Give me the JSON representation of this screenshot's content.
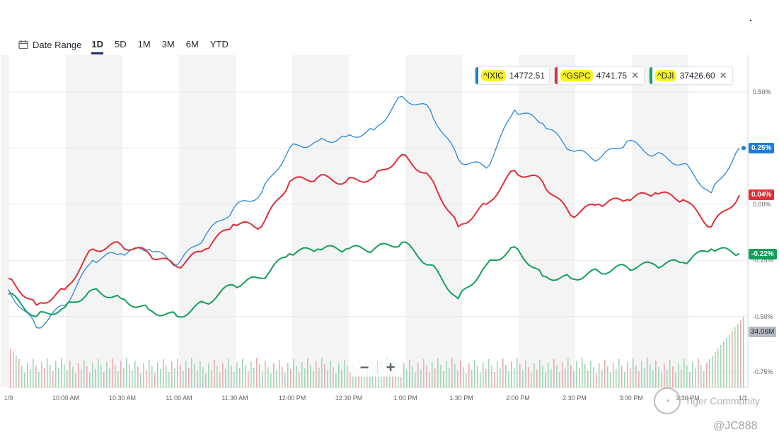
{
  "range_bar": {
    "date_range_label": "Date Range",
    "ranges": [
      "1D",
      "5D",
      "1M",
      "3M",
      "6M",
      "YTD"
    ],
    "active": "1D"
  },
  "legend": [
    {
      "symbol": "^IXIC",
      "value": "14772.51",
      "color": "#1a7fd4",
      "closable": false
    },
    {
      "symbol": "^GSPC",
      "value": "4741.75",
      "color": "#e02f36",
      "closable": true
    },
    {
      "symbol": "^DJI",
      "value": "37426.60",
      "color": "#12a05a",
      "closable": true
    }
  ],
  "price_tags": {
    "ixic": {
      "text": "0.25%",
      "color": "#1a7fd4"
    },
    "gspc": {
      "text": "0.04%",
      "color": "#e02f36"
    },
    "dji": {
      "text": "-0.22%",
      "color": "#12a05a"
    }
  },
  "volume_tag": "34.06M",
  "y_axis_labels": [
    "0.50%",
    "0.00%",
    "-0.25%",
    "-0.50%",
    "-0.75%"
  ],
  "x_axis_labels": [
    "1/9",
    "10:00 AM",
    "10:30 AM",
    "11:00 AM",
    "11:30 AM",
    "12:00 PM",
    "12:30 PM",
    "1:00 PM",
    "1:30 PM",
    "2:00 PM",
    "2:30 PM",
    "3:00 PM",
    "3:30 PM",
    "1/1"
  ],
  "zoom": {
    "minus": "−",
    "plus": "+"
  },
  "watermark": {
    "text": "Tiger Community",
    "handle": "@JC888"
  },
  "chart_data": {
    "type": "line",
    "x": [
      "09:30",
      "09:45",
      "10:00",
      "10:15",
      "10:30",
      "10:45",
      "11:00",
      "11:15",
      "11:30",
      "11:45",
      "12:00",
      "12:15",
      "12:30",
      "12:45",
      "13:00",
      "13:15",
      "13:30",
      "13:45",
      "14:00",
      "14:15",
      "14:30",
      "14:45",
      "15:00",
      "15:15",
      "15:30",
      "15:45",
      "16:00"
    ],
    "xlabels": [
      "10:00 AM",
      "10:30 AM",
      "11:00 AM",
      "11:30 AM",
      "12:00 PM",
      "12:30 PM",
      "1:00 PM",
      "1:30 PM",
      "2:00 PM",
      "2:30 PM",
      "3:00 PM",
      "3:30 PM"
    ],
    "ylabel_ticks": [
      "0.50%",
      "0.00%",
      "-0.25%",
      "-0.50%",
      "-0.75%"
    ],
    "ylim": [
      -0.75,
      0.5
    ],
    "series": [
      {
        "name": "^IXIC",
        "color": "#1a7fd4",
        "values": [
          -0.38,
          -0.55,
          -0.45,
          -0.25,
          -0.22,
          -0.2,
          -0.27,
          -0.14,
          -0.02,
          0.05,
          0.25,
          0.28,
          0.3,
          0.33,
          0.48,
          0.42,
          0.2,
          0.16,
          0.42,
          0.36,
          0.24,
          0.2,
          0.28,
          0.22,
          0.18,
          0.05,
          0.25
        ]
      },
      {
        "name": "^GSPC",
        "color": "#e02f36",
        "values": [
          -0.33,
          -0.45,
          -0.38,
          -0.2,
          -0.18,
          -0.22,
          -0.28,
          -0.2,
          -0.09,
          -0.1,
          0.1,
          0.12,
          0.1,
          0.12,
          0.22,
          0.12,
          -0.1,
          0.0,
          0.15,
          0.1,
          -0.05,
          0.0,
          0.02,
          0.05,
          0.02,
          -0.1,
          0.04
        ]
      },
      {
        "name": "^DJI",
        "color": "#12a05a",
        "values": [
          -0.4,
          -0.5,
          -0.46,
          -0.38,
          -0.42,
          -0.47,
          -0.5,
          -0.44,
          -0.36,
          -0.33,
          -0.22,
          -0.2,
          -0.2,
          -0.2,
          -0.17,
          -0.27,
          -0.42,
          -0.27,
          -0.19,
          -0.32,
          -0.33,
          -0.3,
          -0.28,
          -0.27,
          -0.26,
          -0.2,
          -0.22
        ]
      }
    ],
    "volume_unit": "M",
    "volume_latest": 34.06,
    "grid": true,
    "legend_position": "top-right"
  }
}
